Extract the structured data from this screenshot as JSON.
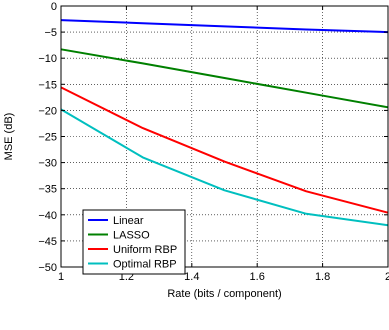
{
  "chart_data": {
    "type": "line",
    "xlabel": "Rate (bits / component)",
    "ylabel": "MSE (dB)",
    "xlim": [
      1,
      2
    ],
    "ylim": [
      -50,
      0
    ],
    "xticks": [
      1,
      1.2,
      1.4,
      1.6,
      1.8,
      2
    ],
    "xtick_labels": [
      "1",
      "1.2",
      "1.4",
      "1.6",
      "1.8",
      "2"
    ],
    "yticks": [
      0,
      -5,
      -10,
      -15,
      -20,
      -25,
      -30,
      -35,
      -40,
      -45,
      -50
    ],
    "ytick_labels": [
      "0",
      "−5",
      "−10",
      "−15",
      "−20",
      "−25",
      "−30",
      "−35",
      "−40",
      "−45",
      "−50"
    ],
    "grid": true,
    "legend_position": "bottom-left",
    "series": [
      {
        "name": "Linear",
        "color": "#0000ff",
        "x": [
          1,
          1.25,
          1.5,
          1.75,
          2
        ],
        "y": [
          -2.7,
          -3.3,
          -3.9,
          -4.5,
          -5.0
        ]
      },
      {
        "name": "LASSO",
        "color": "#008000",
        "x": [
          1,
          1.25,
          1.5,
          1.75,
          2
        ],
        "y": [
          -8.3,
          -11.0,
          -13.8,
          -16.6,
          -19.4
        ]
      },
      {
        "name": "Uniform RBP",
        "color": "#ff0000",
        "x": [
          1,
          1.25,
          1.5,
          1.75,
          2
        ],
        "y": [
          -15.6,
          -23.4,
          -29.8,
          -35.5,
          -39.6
        ]
      },
      {
        "name": "Optimal RBP",
        "color": "#00bfbf",
        "x": [
          1,
          1.25,
          1.5,
          1.75,
          2
        ],
        "y": [
          -19.8,
          -29.0,
          -35.3,
          -39.8,
          -42.0
        ]
      }
    ]
  }
}
